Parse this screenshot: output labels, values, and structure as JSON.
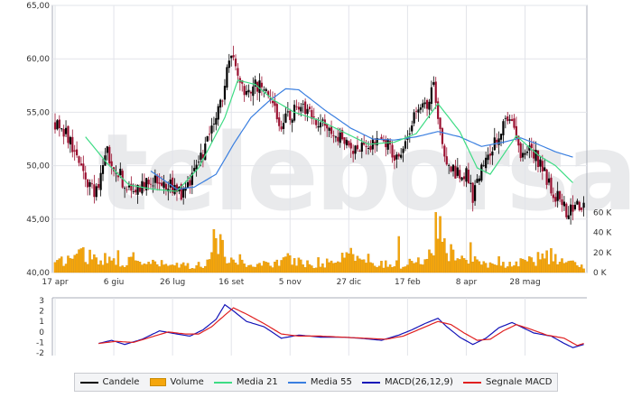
{
  "watermark": "teleborsa",
  "colors": {
    "candle_up": "#000000",
    "candle_down": "#9a1030",
    "volume": "#f5a60c",
    "ma21": "#3ddc84",
    "ma55": "#3a7fe0",
    "macd": "#1414b8",
    "signal": "#e02020",
    "grid": "#e2e4ea",
    "frame": "#a9adb8"
  },
  "legend": [
    {
      "label": "Candele",
      "swatch": "line",
      "color": "#000000"
    },
    {
      "label": "Volume",
      "swatch": "box",
      "color": "#f5a60c"
    },
    {
      "label": "Media 21",
      "swatch": "line",
      "color": "#3ddc84"
    },
    {
      "label": "Media 55",
      "swatch": "line",
      "color": "#3a7fe0"
    },
    {
      "label": "MACD(26,12,9)",
      "swatch": "line",
      "color": "#1414b8"
    },
    {
      "label": "Segnale MACD",
      "swatch": "line",
      "color": "#e02020"
    }
  ],
  "chart_data": [
    {
      "type": "candlestick",
      "title": "",
      "x_tick_labels": [
        "17 apr",
        "6 giu",
        "26 lug",
        "16 set",
        "5 nov",
        "27 dic",
        "17 feb",
        "8 apr",
        "28 mag"
      ],
      "y_tick_labels": [
        "40,00",
        "45,00",
        "50,00",
        "55,00",
        "60,00",
        "65,00"
      ],
      "ylim": [
        40,
        65
      ],
      "volume_tick_labels": [
        "0 K",
        "20 K",
        "40 K",
        "60 K"
      ],
      "volume_lim": [
        0,
        80000
      ],
      "grid": true,
      "price_anchors": [
        [
          0,
          54
        ],
        [
          5,
          53.2
        ],
        [
          10,
          50.6
        ],
        [
          18,
          47.2
        ],
        [
          24,
          51.2
        ],
        [
          35,
          47.2
        ],
        [
          42,
          48.6
        ],
        [
          50,
          48.6
        ],
        [
          58,
          47.2
        ],
        [
          68,
          51.2
        ],
        [
          77,
          56.5
        ],
        [
          81,
          60.8
        ],
        [
          86,
          57.2
        ],
        [
          95,
          57.5
        ],
        [
          104,
          53.8
        ],
        [
          112,
          55.5
        ],
        [
          124,
          53.8
        ],
        [
          134,
          52.2
        ],
        [
          140,
          51.4
        ],
        [
          150,
          52.5
        ],
        [
          158,
          50.6
        ],
        [
          167,
          55.5
        ],
        [
          172,
          56
        ],
        [
          174,
          58.5
        ],
        [
          176,
          53.8
        ],
        [
          180,
          49.6
        ],
        [
          189,
          49.2
        ],
        [
          192,
          47.2
        ],
        [
          198,
          50.6
        ],
        [
          204,
          53.2
        ],
        [
          210,
          54.8
        ],
        [
          214,
          51.4
        ],
        [
          220,
          51.2
        ],
        [
          230,
          47.2
        ],
        [
          236,
          45.6
        ],
        [
          243,
          46.5
        ]
      ],
      "ma21_anchors": [
        [
          14,
          52.7
        ],
        [
          24,
          50.2
        ],
        [
          34,
          48.2
        ],
        [
          45,
          47.8
        ],
        [
          56,
          47.6
        ],
        [
          66,
          49.8
        ],
        [
          78,
          54.5
        ],
        [
          84,
          58
        ],
        [
          92,
          57.6
        ],
        [
          100,
          56.2
        ],
        [
          110,
          55
        ],
        [
          122,
          54.2
        ],
        [
          134,
          53
        ],
        [
          144,
          52
        ],
        [
          156,
          52.2
        ],
        [
          166,
          53
        ],
        [
          176,
          55.8
        ],
        [
          186,
          53.2
        ],
        [
          194,
          49.8
        ],
        [
          200,
          49.2
        ],
        [
          206,
          51
        ],
        [
          212,
          52.8
        ],
        [
          222,
          51
        ],
        [
          230,
          50
        ],
        [
          238,
          48.4
        ]
      ],
      "ma55_anchors": [
        [
          44,
          49.5
        ],
        [
          56,
          47.8
        ],
        [
          64,
          48
        ],
        [
          74,
          49.2
        ],
        [
          82,
          52
        ],
        [
          90,
          54.5
        ],
        [
          98,
          56
        ],
        [
          106,
          57.2
        ],
        [
          112,
          57.1
        ],
        [
          124,
          55.2
        ],
        [
          136,
          53.5
        ],
        [
          146,
          52.5
        ],
        [
          156,
          52.4
        ],
        [
          166,
          52.7
        ],
        [
          176,
          53.2
        ],
        [
          186,
          52.7
        ],
        [
          196,
          51.8
        ],
        [
          206,
          52.2
        ],
        [
          214,
          52.6
        ],
        [
          222,
          52
        ],
        [
          230,
          51.3
        ],
        [
          238,
          50.8
        ]
      ],
      "volume_anchors": [
        [
          0,
          8000
        ],
        [
          12,
          18000
        ],
        [
          26,
          11000
        ],
        [
          40,
          9000
        ],
        [
          55,
          7000
        ],
        [
          62,
          6000
        ],
        [
          70,
          9000
        ],
        [
          74,
          30000
        ],
        [
          79,
          14000
        ],
        [
          90,
          7000
        ],
        [
          100,
          9000
        ],
        [
          110,
          12000
        ],
        [
          120,
          6000
        ],
        [
          128,
          11000
        ],
        [
          135,
          20000
        ],
        [
          148,
          9000
        ],
        [
          160,
          7000
        ],
        [
          170,
          14000
        ],
        [
          176,
          40000
        ],
        [
          182,
          18000
        ],
        [
          188,
          12000
        ],
        [
          200,
          9000
        ],
        [
          210,
          8000
        ],
        [
          220,
          12000
        ],
        [
          228,
          16000
        ],
        [
          236,
          8000
        ],
        [
          243,
          7000
        ]
      ],
      "volume_spikes": [
        [
          13,
          25000
        ],
        [
          29,
          22000
        ],
        [
          36,
          20000
        ],
        [
          73,
          43000
        ],
        [
          76,
          38000
        ],
        [
          85,
          18000
        ],
        [
          107,
          19000
        ],
        [
          121,
          15000
        ],
        [
          134,
          20000
        ],
        [
          145,
          10000
        ],
        [
          158,
          36000
        ],
        [
          175,
          60000
        ],
        [
          177,
          56000
        ],
        [
          182,
          28000
        ],
        [
          191,
          30000
        ],
        [
          204,
          16000
        ],
        [
          214,
          14000
        ],
        [
          228,
          24000
        ]
      ]
    },
    {
      "type": "line",
      "title": "",
      "y_tick_labels": [
        "-2",
        "-1",
        "0",
        "1",
        "2",
        "3"
      ],
      "ylim": [
        -2,
        3
      ],
      "series": [
        {
          "name": "MACD(26,12,9)",
          "anchors": [
            [
              20,
              -1.1
            ],
            [
              26,
              -0.8
            ],
            [
              32,
              -1.2
            ],
            [
              40,
              -0.7
            ],
            [
              48,
              0.1
            ],
            [
              56,
              -0.2
            ],
            [
              62,
              -0.4
            ],
            [
              68,
              0.2
            ],
            [
              74,
              1.2
            ],
            [
              78,
              2.6
            ],
            [
              82,
              2.0
            ],
            [
              88,
              1.0
            ],
            [
              96,
              0.5
            ],
            [
              104,
              -0.6
            ],
            [
              112,
              -0.3
            ],
            [
              122,
              -0.5
            ],
            [
              132,
              -0.5
            ],
            [
              140,
              -0.6
            ],
            [
              150,
              -0.8
            ],
            [
              158,
              -0.3
            ],
            [
              164,
              0.2
            ],
            [
              170,
              0.8
            ],
            [
              176,
              1.3
            ],
            [
              180,
              0.5
            ],
            [
              186,
              -0.5
            ],
            [
              192,
              -1.2
            ],
            [
              198,
              -0.6
            ],
            [
              204,
              0.4
            ],
            [
              210,
              0.9
            ],
            [
              214,
              0.5
            ],
            [
              220,
              -0.1
            ],
            [
              228,
              -0.4
            ],
            [
              234,
              -1.1
            ],
            [
              238,
              -1.5
            ],
            [
              243,
              -1.2
            ]
          ]
        },
        {
          "name": "Segnale MACD",
          "anchors": [
            [
              20,
              -1.1
            ],
            [
              28,
              -0.9
            ],
            [
              36,
              -1.0
            ],
            [
              44,
              -0.5
            ],
            [
              52,
              0.0
            ],
            [
              60,
              -0.2
            ],
            [
              66,
              -0.2
            ],
            [
              72,
              0.5
            ],
            [
              78,
              1.6
            ],
            [
              82,
              2.3
            ],
            [
              88,
              1.7
            ],
            [
              96,
              0.8
            ],
            [
              104,
              -0.2
            ],
            [
              112,
              -0.4
            ],
            [
              122,
              -0.4
            ],
            [
              132,
              -0.5
            ],
            [
              142,
              -0.6
            ],
            [
              152,
              -0.7
            ],
            [
              160,
              -0.4
            ],
            [
              168,
              0.3
            ],
            [
              176,
              1.0
            ],
            [
              182,
              0.7
            ],
            [
              188,
              -0.1
            ],
            [
              194,
              -0.8
            ],
            [
              200,
              -0.7
            ],
            [
              206,
              0.1
            ],
            [
              212,
              0.7
            ],
            [
              218,
              0.3
            ],
            [
              226,
              -0.3
            ],
            [
              234,
              -0.6
            ],
            [
              240,
              -1.3
            ],
            [
              243,
              -1.1
            ]
          ]
        }
      ]
    }
  ]
}
